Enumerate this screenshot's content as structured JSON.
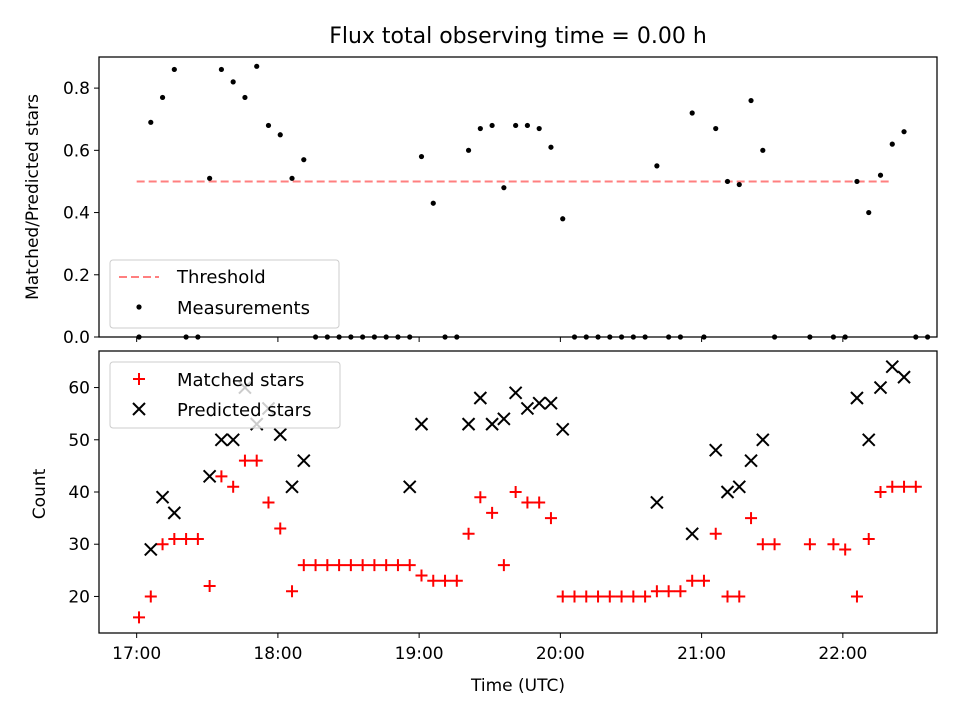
{
  "title": "Flux total observing time = 0.00 h",
  "chart_data": [
    {
      "type": "scatter",
      "panel": "top",
      "title": "Flux total observing time = 0.00 h",
      "xlabel": "",
      "ylabel": "Matched/Predicted stars",
      "ylim": [
        0,
        0.9
      ],
      "yticks": [
        "0.0",
        "0.2",
        "0.4",
        "0.6",
        "0.8"
      ],
      "xlim": [
        "16:44",
        "22:40"
      ],
      "legend": {
        "position": "lower-left",
        "entries": [
          {
            "label": "Threshold",
            "style": "dashed-line",
            "color": "#ff7f7f"
          },
          {
            "label": "Measurements",
            "style": "dot",
            "color": "#000000"
          }
        ]
      },
      "threshold": {
        "name": "Threshold",
        "y": 0.5,
        "x_start": "17:00",
        "x_end": "22:20",
        "color": "#ff7f7f"
      },
      "series": [
        {
          "name": "Measurements",
          "color": "#000000",
          "points": [
            [
              "17:01",
              0.0
            ],
            [
              "17:06",
              0.69
            ],
            [
              "17:11",
              0.77
            ],
            [
              "17:16",
              0.86
            ],
            [
              "17:21",
              0.0
            ],
            [
              "17:26",
              0.0
            ],
            [
              "17:31",
              0.51
            ],
            [
              "17:36",
              0.86
            ],
            [
              "17:41",
              0.82
            ],
            [
              "17:46",
              0.77
            ],
            [
              "17:51",
              0.87
            ],
            [
              "17:56",
              0.68
            ],
            [
              "18:01",
              0.65
            ],
            [
              "18:06",
              0.51
            ],
            [
              "18:11",
              0.57
            ],
            [
              "18:16",
              0.0
            ],
            [
              "18:21",
              0.0
            ],
            [
              "18:26",
              0.0
            ],
            [
              "18:31",
              0.0
            ],
            [
              "18:36",
              0.0
            ],
            [
              "18:41",
              0.0
            ],
            [
              "18:46",
              0.0
            ],
            [
              "18:51",
              0.0
            ],
            [
              "18:56",
              0.0
            ],
            [
              "19:01",
              0.58
            ],
            [
              "19:06",
              0.43
            ],
            [
              "19:11",
              0.0
            ],
            [
              "19:16",
              0.0
            ],
            [
              "19:21",
              0.6
            ],
            [
              "19:26",
              0.67
            ],
            [
              "19:31",
              0.68
            ],
            [
              "19:36",
              0.48
            ],
            [
              "19:41",
              0.68
            ],
            [
              "19:46",
              0.68
            ],
            [
              "19:51",
              0.67
            ],
            [
              "19:56",
              0.61
            ],
            [
              "20:01",
              0.38
            ],
            [
              "20:06",
              0.0
            ],
            [
              "20:11",
              0.0
            ],
            [
              "20:16",
              0.0
            ],
            [
              "20:21",
              0.0
            ],
            [
              "20:26",
              0.0
            ],
            [
              "20:31",
              0.0
            ],
            [
              "20:36",
              0.0
            ],
            [
              "20:41",
              0.55
            ],
            [
              "20:46",
              0.0
            ],
            [
              "20:51",
              0.0
            ],
            [
              "20:56",
              0.72
            ],
            [
              "21:01",
              0.0
            ],
            [
              "21:06",
              0.67
            ],
            [
              "21:11",
              0.5
            ],
            [
              "21:16",
              0.49
            ],
            [
              "21:21",
              0.76
            ],
            [
              "21:26",
              0.6
            ],
            [
              "21:31",
              0.0
            ],
            [
              "21:46",
              0.0
            ],
            [
              "21:56",
              0.0
            ],
            [
              "22:01",
              0.0
            ],
            [
              "22:06",
              0.5
            ],
            [
              "22:11",
              0.4
            ],
            [
              "22:16",
              0.52
            ],
            [
              "22:21",
              0.62
            ],
            [
              "22:26",
              0.66
            ],
            [
              "22:31",
              0.0
            ],
            [
              "22:36",
              0.0
            ]
          ]
        }
      ]
    },
    {
      "type": "scatter",
      "panel": "bottom",
      "title": "",
      "xlabel": "Time (UTC)",
      "ylabel": "Count",
      "ylim": [
        13,
        67
      ],
      "yticks": [
        "20",
        "30",
        "40",
        "50",
        "60"
      ],
      "xlim": [
        "16:44",
        "22:40"
      ],
      "xticks": [
        "17:00",
        "18:00",
        "19:00",
        "20:00",
        "21:00",
        "22:00"
      ],
      "legend": {
        "position": "upper-left",
        "entries": [
          {
            "label": "Matched stars",
            "style": "plus",
            "color": "#ff0000"
          },
          {
            "label": "Predicted stars",
            "style": "x",
            "color": "#000000"
          }
        ]
      },
      "series": [
        {
          "name": "Matched stars",
          "color": "#ff0000",
          "marker": "plus",
          "points": [
            [
              "17:01",
              16
            ],
            [
              "17:06",
              20
            ],
            [
              "17:11",
              30
            ],
            [
              "17:16",
              31
            ],
            [
              "17:21",
              31
            ],
            [
              "17:26",
              31
            ],
            [
              "17:31",
              22
            ],
            [
              "17:36",
              43
            ],
            [
              "17:41",
              41
            ],
            [
              "17:46",
              46
            ],
            [
              "17:51",
              46
            ],
            [
              "17:56",
              38
            ],
            [
              "18:01",
              33
            ],
            [
              "18:06",
              21
            ],
            [
              "18:11",
              26
            ],
            [
              "18:16",
              26
            ],
            [
              "18:21",
              26
            ],
            [
              "18:26",
              26
            ],
            [
              "18:31",
              26
            ],
            [
              "18:36",
              26
            ],
            [
              "18:41",
              26
            ],
            [
              "18:46",
              26
            ],
            [
              "18:51",
              26
            ],
            [
              "18:56",
              26
            ],
            [
              "19:01",
              24
            ],
            [
              "19:06",
              23
            ],
            [
              "19:11",
              23
            ],
            [
              "19:16",
              23
            ],
            [
              "19:21",
              32
            ],
            [
              "19:26",
              39
            ],
            [
              "19:31",
              36
            ],
            [
              "19:36",
              26
            ],
            [
              "19:41",
              40
            ],
            [
              "19:46",
              38
            ],
            [
              "19:51",
              38
            ],
            [
              "19:56",
              35
            ],
            [
              "20:01",
              20
            ],
            [
              "20:06",
              20
            ],
            [
              "20:11",
              20
            ],
            [
              "20:16",
              20
            ],
            [
              "20:21",
              20
            ],
            [
              "20:26",
              20
            ],
            [
              "20:31",
              20
            ],
            [
              "20:36",
              20
            ],
            [
              "20:41",
              21
            ],
            [
              "20:46",
              21
            ],
            [
              "20:51",
              21
            ],
            [
              "20:56",
              23
            ],
            [
              "21:01",
              23
            ],
            [
              "21:06",
              32
            ],
            [
              "21:11",
              20
            ],
            [
              "21:16",
              20
            ],
            [
              "21:21",
              35
            ],
            [
              "21:26",
              30
            ],
            [
              "21:31",
              30
            ],
            [
              "21:46",
              30
            ],
            [
              "21:56",
              30
            ],
            [
              "22:01",
              29
            ],
            [
              "22:06",
              20
            ],
            [
              "22:11",
              31
            ],
            [
              "22:16",
              40
            ],
            [
              "22:21",
              41
            ],
            [
              "22:26",
              41
            ],
            [
              "22:31",
              41
            ]
          ]
        },
        {
          "name": "Predicted stars",
          "color": "#000000",
          "marker": "x",
          "points": [
            [
              "17:06",
              29
            ],
            [
              "17:11",
              39
            ],
            [
              "17:16",
              36
            ],
            [
              "17:31",
              43
            ],
            [
              "17:36",
              50
            ],
            [
              "17:41",
              50
            ],
            [
              "17:46",
              60
            ],
            [
              "17:51",
              53
            ],
            [
              "17:56",
              56
            ],
            [
              "18:01",
              51
            ],
            [
              "18:06",
              41
            ],
            [
              "18:11",
              46
            ],
            [
              "18:56",
              41
            ],
            [
              "19:01",
              53
            ],
            [
              "19:21",
              53
            ],
            [
              "19:26",
              58
            ],
            [
              "19:31",
              53
            ],
            [
              "19:36",
              54
            ],
            [
              "19:41",
              59
            ],
            [
              "19:46",
              56
            ],
            [
              "19:51",
              57
            ],
            [
              "19:56",
              57
            ],
            [
              "20:01",
              52
            ],
            [
              "20:41",
              38
            ],
            [
              "20:56",
              32
            ],
            [
              "21:06",
              48
            ],
            [
              "21:11",
              40
            ],
            [
              "21:16",
              41
            ],
            [
              "21:21",
              46
            ],
            [
              "21:26",
              50
            ],
            [
              "22:06",
              58
            ],
            [
              "22:11",
              50
            ],
            [
              "22:16",
              60
            ],
            [
              "22:21",
              64
            ],
            [
              "22:26",
              62
            ]
          ]
        }
      ]
    }
  ]
}
